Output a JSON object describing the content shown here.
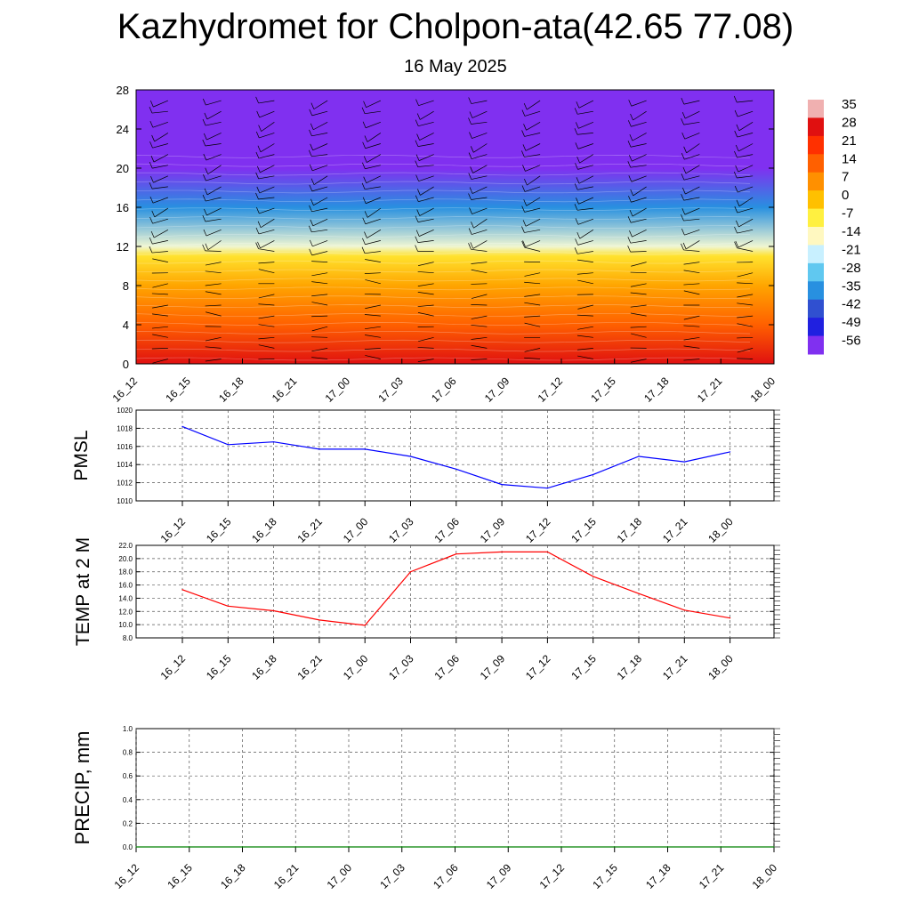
{
  "header": {
    "title": "Kazhydromet for Cholpon-ata(42.65 77.08)",
    "date": "16 May 2025"
  },
  "chart_data": [
    {
      "type": "heatmap",
      "title": "",
      "xlabel": "",
      "ylabel": "",
      "x": [
        "16_12",
        "16_15",
        "16_18",
        "16_21",
        "17_00",
        "17_03",
        "17_06",
        "17_09",
        "17_12",
        "17_15",
        "17_18",
        "17_21",
        "18_00"
      ],
      "y_ticks": [
        0,
        4,
        8,
        12,
        16,
        20,
        24,
        28
      ],
      "ylim": [
        0,
        28
      ],
      "colorbar_labels": [
        "35",
        "28",
        "21",
        "14",
        "7",
        "0",
        "-7",
        "-14",
        "-21",
        "-28",
        "-35",
        "-42",
        "-49",
        "-56"
      ],
      "colorbar_colors": [
        "#f0b0b0",
        "#e01010",
        "#ff3000",
        "#ff6000",
        "#ff9000",
        "#ffc000",
        "#fff040",
        "#fff8c0",
        "#c8f0ff",
        "#60c8f0",
        "#2890e0",
        "#3050d0",
        "#2020e0",
        "#8030f0"
      ],
      "temperature_by_level": [
        {
          "level": 0,
          "value": 28
        },
        {
          "level": 4,
          "value": 14
        },
        {
          "level": 8,
          "value": 4
        },
        {
          "level": 11,
          "value": -5
        },
        {
          "level": 12,
          "value": -16
        },
        {
          "level": 16,
          "value": -35
        },
        {
          "level": 20,
          "value": -56
        },
        {
          "level": 22,
          "value": -60
        },
        {
          "level": 28,
          "value": -60
        }
      ],
      "wind_barbs": true
    },
    {
      "type": "line",
      "ylabel": "PMSL",
      "x": [
        "16_12",
        "16_15",
        "16_18",
        "16_21",
        "17_00",
        "17_03",
        "17_06",
        "17_09",
        "17_12",
        "17_15",
        "17_18",
        "17_21",
        "18_00"
      ],
      "series": [
        {
          "values": [
            1018.2,
            1016.2,
            1016.5,
            1015.7,
            1015.7,
            1014.9,
            1013.5,
            1011.8,
            1011.4,
            1012.9,
            1014.9,
            1014.3,
            1015.4
          ],
          "color": "#0000ff"
        }
      ],
      "ylim": [
        1010,
        1020
      ],
      "y_ticks": [
        "1010",
        "1012",
        "1014",
        "1016",
        "1018",
        "1020"
      ],
      "grid": true
    },
    {
      "type": "line",
      "ylabel": "TEMP at 2 M",
      "x": [
        "16_12",
        "16_15",
        "16_18",
        "16_21",
        "17_00",
        "17_03",
        "17_06",
        "17_09",
        "17_12",
        "17_15",
        "17_18",
        "17_21",
        "18_00"
      ],
      "series": [
        {
          "values": [
            15.3,
            12.8,
            12.1,
            10.7,
            9.9,
            18.0,
            20.7,
            21.0,
            21.0,
            17.3,
            14.7,
            12.2,
            11.0
          ],
          "color": "#ff0000"
        }
      ],
      "ylim": [
        8,
        22
      ],
      "y_ticks": [
        "8.0",
        "10.0",
        "12.0",
        "14.0",
        "16.0",
        "18.0",
        "20.0",
        "22.0"
      ],
      "grid": true
    },
    {
      "type": "line",
      "ylabel": "PRECIP, mm",
      "x": [
        "16_12",
        "16_15",
        "16_18",
        "16_21",
        "17_00",
        "17_03",
        "17_06",
        "17_09",
        "17_12",
        "17_15",
        "17_18",
        "17_21",
        "18_00"
      ],
      "series": [
        {
          "values": [
            0,
            0,
            0,
            0,
            0,
            0,
            0,
            0,
            0,
            0,
            0,
            0,
            0
          ],
          "color": "#008000"
        }
      ],
      "ylim": [
        0,
        1
      ],
      "y_ticks": [
        "0.0",
        "0.2",
        "0.4",
        "0.6",
        "0.8",
        "1.0"
      ],
      "grid": true
    }
  ]
}
